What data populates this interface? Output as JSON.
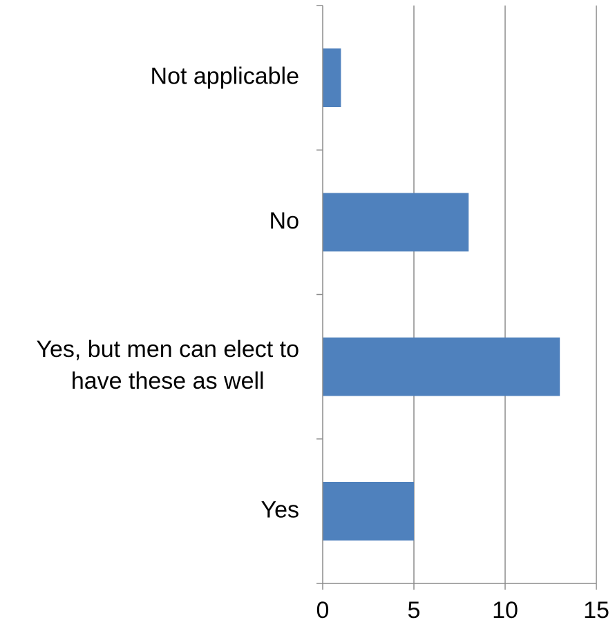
{
  "chart_data": {
    "type": "bar",
    "orientation": "horizontal",
    "categories": [
      "Not applicable",
      "No",
      "Yes, but men can elect to have these as well",
      "Yes"
    ],
    "category_label_lines": [
      [
        "Not applicable"
      ],
      [
        "No"
      ],
      [
        "Yes, but men can elect to",
        "have these as well"
      ],
      [
        "Yes"
      ]
    ],
    "values": [
      1,
      8,
      13,
      5
    ],
    "xlim": [
      0,
      15
    ],
    "x_ticks": [
      0,
      5,
      10,
      15
    ],
    "grid": "vertical",
    "legend": "none",
    "bar_color": "#4f81bd",
    "grid_color": "#8c8c8c"
  }
}
